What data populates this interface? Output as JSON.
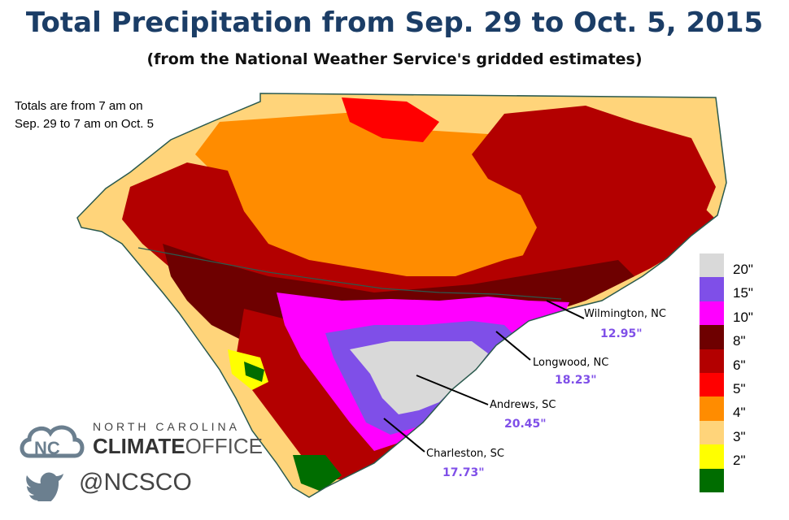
{
  "header": {
    "title": "Total Precipitation from Sep. 29 to Oct. 5, 2015",
    "subtitle": "(from the National Weather Service's gridded estimates)"
  },
  "note": {
    "line1": "Totals are from 7 am on",
    "line2": "Sep. 29 to 7 am on Oct. 5"
  },
  "callouts": [
    {
      "name": "Wilmington, NC",
      "value": "12.95\""
    },
    {
      "name": "Longwood, NC",
      "value": "18.23\""
    },
    {
      "name": "Andrews, SC",
      "value": "20.45\""
    },
    {
      "name": "Charleston, SC",
      "value": "17.73\""
    }
  ],
  "legend": {
    "labels": [
      "20\"",
      "15\"",
      "10\"",
      "8\"",
      "6\"",
      "5\"",
      "4\"",
      "3\"",
      "2\""
    ],
    "colors": [
      "#d9d9d9",
      "#7f4fe8",
      "#ff00ff",
      "#6e0000",
      "#b30000",
      "#ff0000",
      "#ff8c00",
      "#ffd47a",
      "#ffff00",
      "#006d00"
    ]
  },
  "colors": {
    "title": "#1b3d66",
    "value_text": "#7f4fe8"
  },
  "logo": {
    "top_text": "NORTH CAROLINA",
    "climate": "CLIMATE",
    "office": "OFFICE",
    "handle": "@NCSCO",
    "icons": [
      "nc-cloud-icon",
      "twitter-bird-icon"
    ]
  }
}
